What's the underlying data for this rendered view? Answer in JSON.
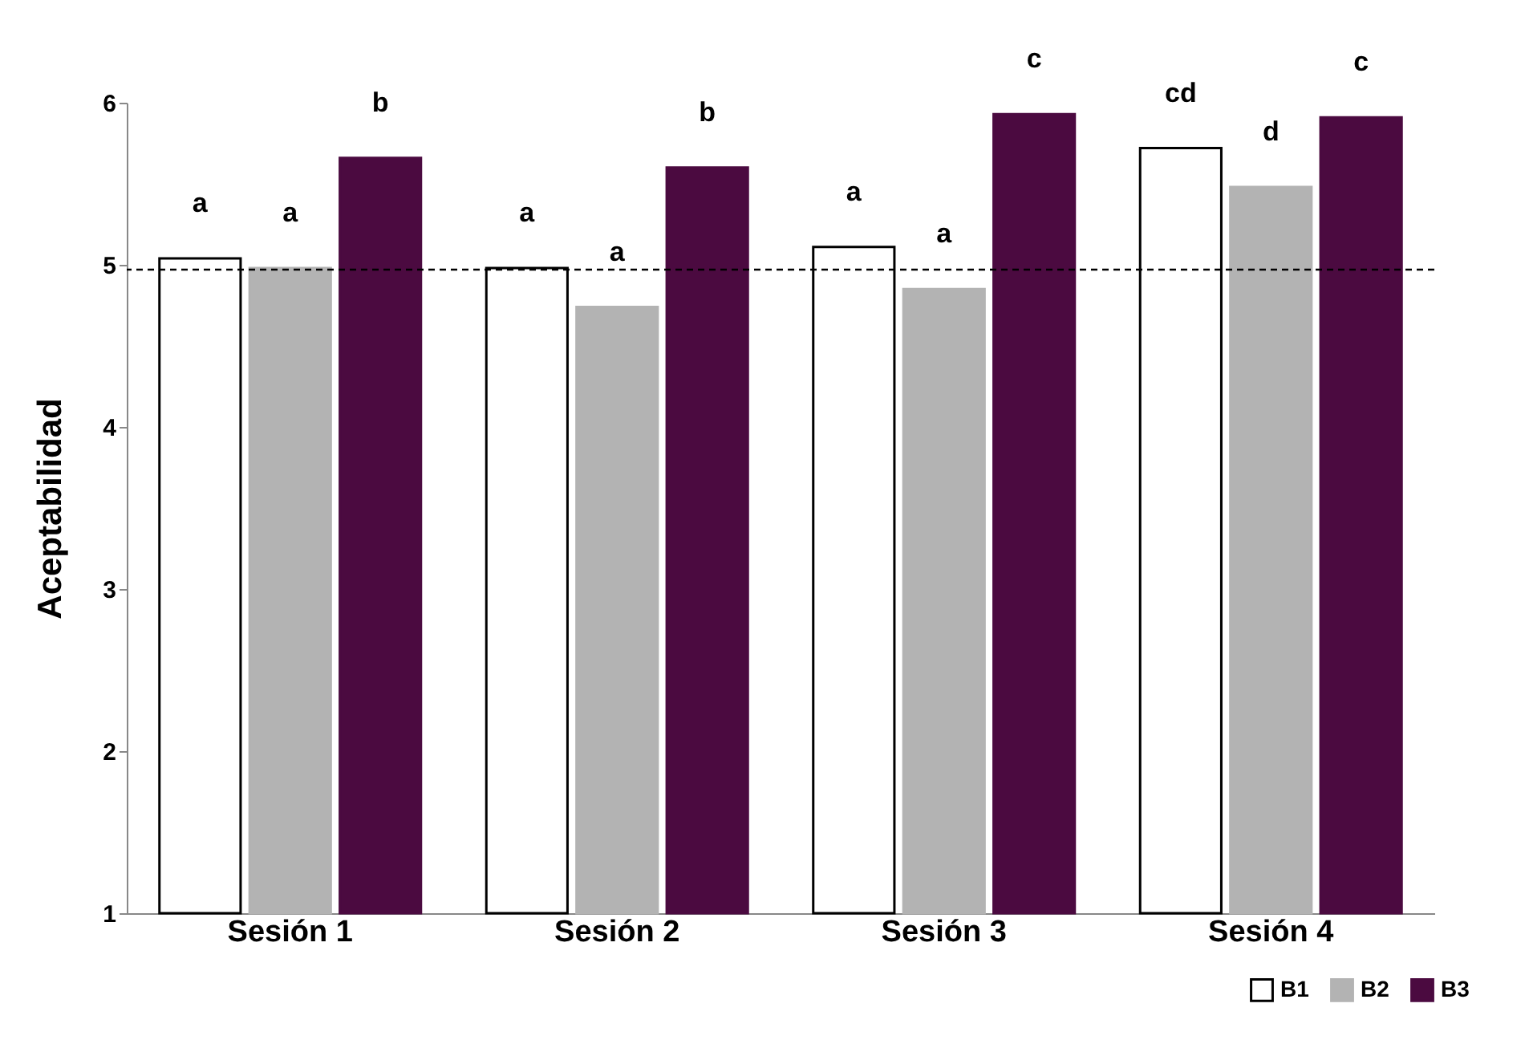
{
  "chart_data": {
    "type": "bar",
    "ylabel": "Aceptabilidad",
    "categories": [
      "Sesión 1",
      "Sesión 2",
      "Sesión 3",
      "Sesión 4"
    ],
    "series": [
      {
        "name": "B1",
        "color": "#ffffff",
        "values": [
          5.04,
          4.98,
          5.11,
          5.72
        ],
        "value_labels": [
          "a",
          "a",
          "a",
          "cd"
        ]
      },
      {
        "name": "B2",
        "color": "#b3b3b3",
        "values": [
          4.98,
          4.74,
          4.85,
          5.48
        ],
        "value_labels": [
          "a",
          "a",
          "a",
          "d"
        ]
      },
      {
        "name": "B3",
        "color": "#4b0a40",
        "values": [
          5.66,
          5.6,
          5.93,
          5.91
        ],
        "value_labels": [
          "b",
          "b",
          "c",
          "c"
        ]
      }
    ],
    "ylim": [
      1,
      6
    ],
    "yticks": [
      1,
      2,
      3,
      4,
      5,
      6
    ],
    "grid": false,
    "legend": "bottom right",
    "ref_lines": [
      {
        "axis": "y",
        "value": 4.97,
        "line_style": "dashed",
        "color": "#000000"
      }
    ]
  }
}
